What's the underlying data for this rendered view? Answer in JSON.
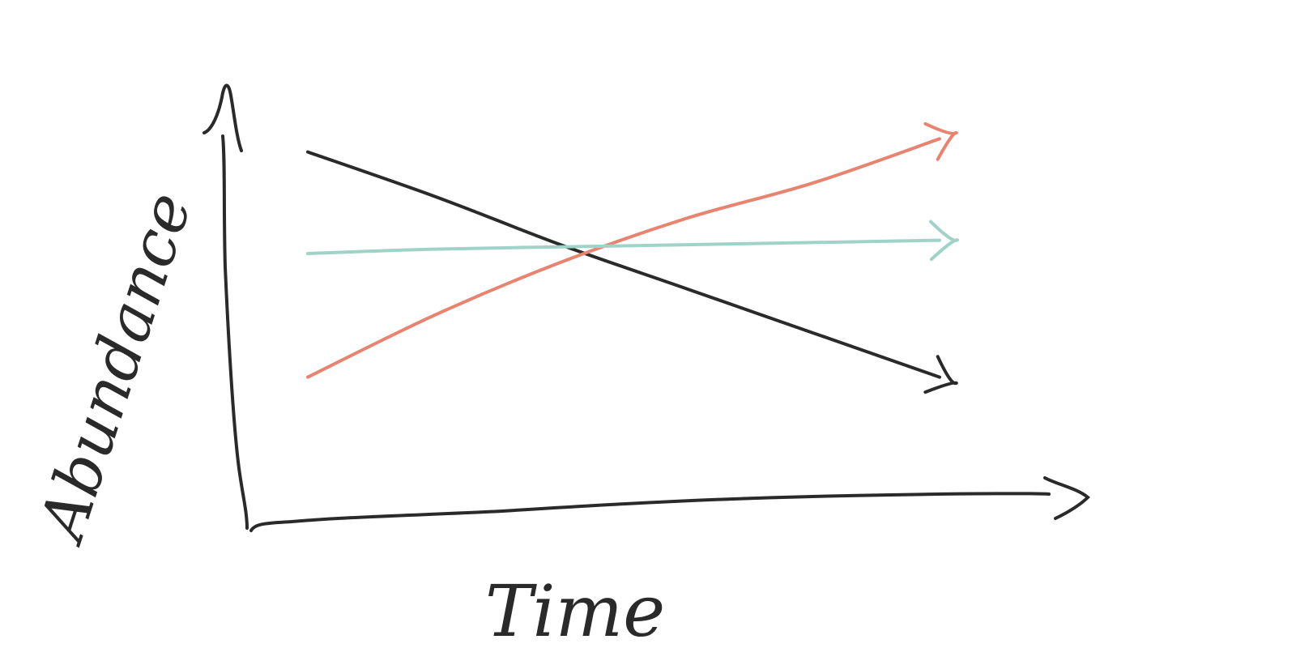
{
  "chart_data": {
    "type": "line",
    "title": "",
    "xlabel": "Time",
    "ylabel": "Abundance",
    "xlim": [
      0,
      10
    ],
    "ylim": [
      0,
      10
    ],
    "grid": false,
    "legend": "none",
    "series": [
      {
        "color": "#2a2a2a",
        "x": [
          0,
          2,
          4,
          6,
          8,
          10
        ],
        "y": [
          8.3,
          7.3,
          6.2,
          5.2,
          4.2,
          3.2
        ]
      },
      {
        "color": "#e8836f",
        "x": [
          0,
          2,
          4,
          6,
          8,
          10
        ],
        "y": [
          3.2,
          4.6,
          5.8,
          6.8,
          7.6,
          8.6
        ]
      },
      {
        "color": "#9fd3c7",
        "x": [
          0,
          2,
          4,
          6,
          8,
          10
        ],
        "y": [
          6.0,
          6.1,
          6.15,
          6.2,
          6.25,
          6.3
        ]
      }
    ]
  }
}
